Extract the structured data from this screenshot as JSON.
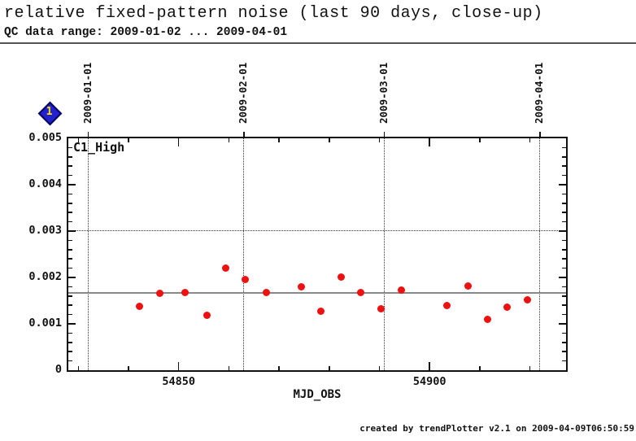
{
  "header": {
    "title": "relative fixed-pattern noise (last 90 days, close-up)",
    "subtitle": "QC data range: 2009-01-02 ... 2009-04-01"
  },
  "nav_marker": {
    "label": "1"
  },
  "footer": {
    "credit": "created by trendPlotter v2.1 on 2009-04-09T06:50:59"
  },
  "chart_data": {
    "type": "scatter",
    "series": [
      {
        "name": "C1_High",
        "color": "#ee1111",
        "points": [
          [
            54842.2,
            0.00138
          ],
          [
            54846.2,
            0.00166
          ],
          [
            54851.2,
            0.00168
          ],
          [
            54855.6,
            0.00119
          ],
          [
            54859.4,
            0.00221
          ],
          [
            54863.3,
            0.00196
          ],
          [
            54867.4,
            0.00168
          ],
          [
            54874.4,
            0.00179
          ],
          [
            54878.3,
            0.00127
          ],
          [
            54882.4,
            0.00201
          ],
          [
            54886.3,
            0.00168
          ],
          [
            54890.3,
            0.00133
          ],
          [
            54894.4,
            0.00173
          ],
          [
            54903.5,
            0.0014
          ],
          [
            54907.6,
            0.00182
          ],
          [
            54911.5,
            0.0011
          ],
          [
            54915.4,
            0.00136
          ],
          [
            54919.5,
            0.00152
          ]
        ]
      }
    ],
    "xlabel": "MJD_OBS",
    "xlim": [
      54828,
      54927.2
    ],
    "ylim": [
      0,
      0.005
    ],
    "x_major_ticks": [
      {
        "value": 54850,
        "label": "54850"
      },
      {
        "value": 54900,
        "label": "54900"
      }
    ],
    "x_minor_ticks": [
      54830,
      54840,
      54860,
      54870,
      54880,
      54890,
      54910,
      54920
    ],
    "y_major_ticks": [
      {
        "value": 0,
        "label": "0"
      },
      {
        "value": 0.001,
        "label": "0.001"
      },
      {
        "value": 0.002,
        "label": "0.002"
      },
      {
        "value": 0.003,
        "label": "0.003"
      },
      {
        "value": 0.004,
        "label": "0.004"
      },
      {
        "value": 0.005,
        "label": "0.005"
      }
    ],
    "y_minor_step": 0.0002,
    "top_axis_dates": [
      {
        "value": 54832,
        "label": "2009-01-01"
      },
      {
        "value": 54863,
        "label": "2009-02-01"
      },
      {
        "value": 54891,
        "label": "2009-03-01"
      },
      {
        "value": 54922,
        "label": "2009-04-01"
      }
    ],
    "h_dotted_gridline": 0.003,
    "mean_line": {
      "value": 0.00166,
      "color": "#888888"
    },
    "grid_color": "#333333",
    "axis_color": "#111111"
  }
}
